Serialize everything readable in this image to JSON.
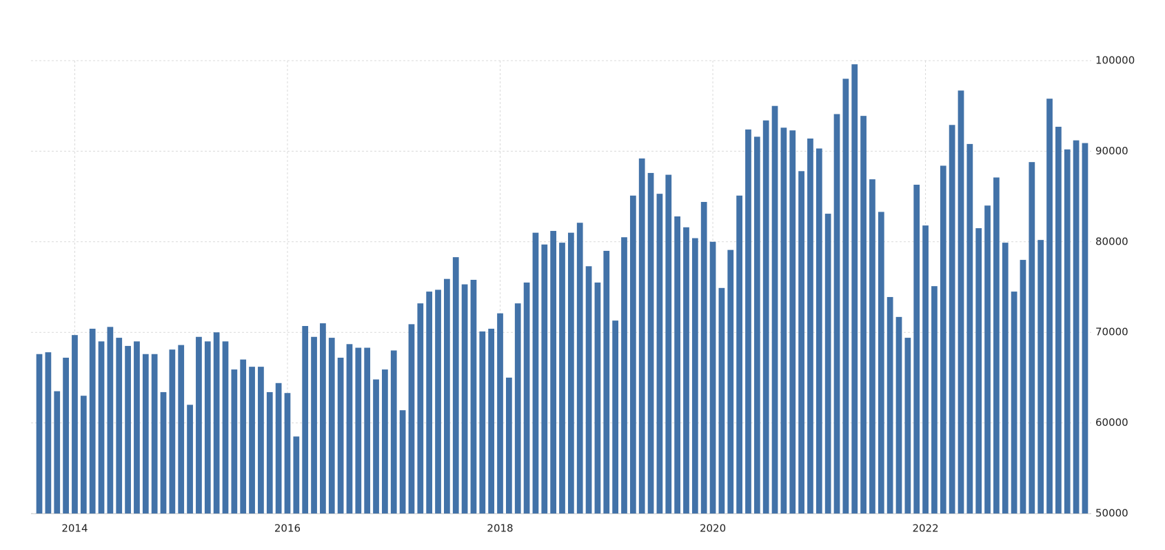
{
  "chart_data": {
    "type": "bar",
    "color": "#4272a8",
    "categories": [
      null,
      null,
      null,
      null,
      "2014",
      null,
      null,
      null,
      null,
      null,
      null,
      null,
      null,
      null,
      null,
      null,
      null,
      null,
      null,
      null,
      null,
      null,
      null,
      null,
      null,
      null,
      null,
      null,
      "2016",
      null,
      null,
      null,
      null,
      null,
      null,
      null,
      null,
      null,
      null,
      null,
      null,
      null,
      null,
      null,
      null,
      null,
      null,
      null,
      null,
      null,
      null,
      null,
      "2018",
      null,
      null,
      null,
      null,
      null,
      null,
      null,
      null,
      null,
      null,
      null,
      null,
      null,
      null,
      null,
      null,
      null,
      null,
      null,
      null,
      null,
      null,
      null,
      "2020",
      null,
      null,
      null,
      null,
      null,
      null,
      null,
      null,
      null,
      null,
      null,
      null,
      null,
      null,
      null,
      null,
      null,
      null,
      null,
      null,
      null,
      null,
      null,
      "2022",
      null,
      null,
      null,
      null,
      null,
      null,
      null,
      null,
      null,
      null,
      null,
      null,
      null,
      null,
      null,
      null,
      null,
      null
    ],
    "values": [
      67600,
      67800,
      63500,
      67200,
      69700,
      63000,
      70400,
      69000,
      70600,
      69400,
      68500,
      69000,
      67600,
      67600,
      63400,
      68100,
      68600,
      62000,
      69500,
      69000,
      70000,
      69000,
      65900,
      67000,
      66200,
      66200,
      63400,
      64400,
      63300,
      58500,
      70700,
      69500,
      71000,
      69400,
      67200,
      68700,
      68300,
      68300,
      64800,
      65900,
      68000,
      61400,
      70900,
      73200,
      74500,
      74700,
      75900,
      78300,
      75300,
      75800,
      70100,
      70400,
      72100,
      65000,
      73200,
      75500,
      81000,
      79700,
      81200,
      79900,
      81000,
      82100,
      77300,
      75500,
      79000,
      71300,
      80500,
      85100,
      89200,
      87600,
      85300,
      87400,
      82800,
      81600,
      80400,
      84400,
      80000,
      74900,
      79100,
      85100,
      92400,
      91600,
      93400,
      95000,
      92600,
      92300,
      87800,
      91400,
      90300,
      83100,
      94100,
      98000,
      99600,
      93900,
      86900,
      83300,
      73900,
      71700,
      69400,
      86300,
      81800,
      75100,
      88400,
      92900,
      96700,
      90800,
      81500,
      84000,
      87100,
      79900,
      74500,
      78000,
      88800,
      80200,
      95800,
      92700,
      90200,
      91200,
      90900
    ],
    "ylim": [
      50000,
      100000
    ],
    "yticks": [
      50000,
      60000,
      70000,
      80000,
      90000,
      100000
    ],
    "grid": true
  }
}
